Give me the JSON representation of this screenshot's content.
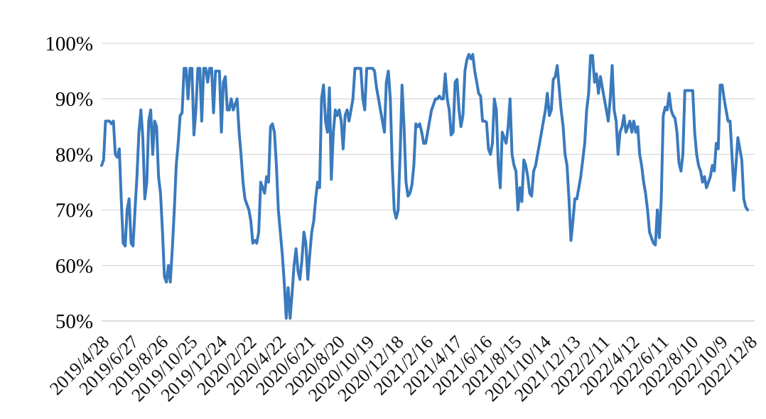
{
  "page": {
    "background": "#ffffff"
  },
  "chart_data": {
    "type": "line",
    "title": "",
    "grid": {
      "show": true,
      "color": "#d9d9d9",
      "axis_line_color": "#c9c9c9"
    },
    "legend_position": "none",
    "y_axis": {
      "tick_labels": [
        "100%",
        "90%",
        "80%",
        "70%",
        "60%",
        "50%"
      ],
      "min": 50,
      "max": 100,
      "unit": "%",
      "label_color": "#000000"
    },
    "x_axis": {
      "tick_labels": [
        "2019/4/28",
        "2019/6/27",
        "2019/8/26",
        "2019/10/25",
        "2019/12/24",
        "2020/2/22",
        "2020/4/22",
        "2020/6/21",
        "2020/8/20",
        "2020/10/19",
        "2020/12/18",
        "2021/2/16",
        "2021/4/17",
        "2021/6/16",
        "2021/8/15",
        "2021/10/14",
        "2021/12/13",
        "2022/2/11",
        "2022/4/12",
        "2022/6/11",
        "2022/8/10",
        "2022/10/9",
        "2022/12/8"
      ],
      "tick_interval_days": 60,
      "total_days": 1320,
      "label_rotation_deg": -45,
      "label_color": "#111111"
    },
    "series": [
      {
        "name": "",
        "color": "#3A7ABD",
        "stroke_width": 4,
        "x_start_day": 0,
        "x_step_days": 4,
        "values": [
          78,
          79,
          86,
          86,
          86,
          85.5,
          86,
          80,
          79.5,
          81,
          72,
          64,
          63.5,
          70,
          72,
          64,
          63.5,
          70,
          76,
          84,
          88,
          83,
          72,
          75,
          86,
          88,
          80,
          86,
          85,
          76,
          73,
          66,
          58,
          57,
          60,
          57,
          63,
          70,
          78,
          82,
          87,
          87.5,
          95.5,
          95.5,
          90,
          95.5,
          95.5,
          83.5,
          88,
          95.5,
          95.5,
          86,
          95.5,
          95.5,
          93,
          95.5,
          95.5,
          87.5,
          95,
          95,
          95,
          84,
          93,
          94,
          88,
          88,
          90,
          88,
          89,
          90,
          84,
          80,
          75,
          72,
          71,
          70,
          68,
          64,
          64.5,
          64,
          66,
          75,
          74,
          73,
          76,
          75,
          85,
          85.5,
          84,
          78,
          70,
          66,
          62,
          57,
          50.5,
          56,
          50.5,
          55,
          60,
          63,
          59,
          57.5,
          61,
          66,
          64,
          57.5,
          62,
          66,
          68,
          72,
          75,
          74,
          90,
          92.5,
          86,
          84,
          92,
          75.5,
          84,
          88,
          87,
          88,
          86,
          81,
          87,
          88,
          86,
          88,
          90,
          95.5,
          95.5,
          95.5,
          95.5,
          90,
          88,
          95.5,
          95.5,
          95.5,
          95.5,
          95,
          92,
          90,
          88,
          86,
          84,
          93,
          95,
          90,
          78,
          70,
          68.5,
          70,
          80,
          92.5,
          85,
          75,
          72.5,
          73,
          74.5,
          78,
          85.5,
          85,
          85.5,
          84,
          82,
          82,
          84,
          86,
          88,
          89,
          90,
          90,
          90.5,
          90,
          90,
          94.5,
          90,
          88,
          83.5,
          84,
          93,
          93.5,
          88,
          85,
          87,
          95,
          97,
          98,
          97.2,
          98,
          95,
          93,
          91,
          90.5,
          86,
          86,
          85.8,
          81,
          80,
          82,
          90,
          88,
          78,
          74,
          84,
          83,
          82,
          85,
          90,
          80,
          78,
          77,
          70,
          74,
          71.5,
          79,
          78,
          76,
          73,
          72.5,
          77,
          78,
          80,
          82,
          84,
          86,
          88,
          91,
          87,
          88,
          93.5,
          94,
          96,
          92,
          88,
          85,
          80,
          78,
          72,
          64.5,
          68,
          72,
          72,
          74,
          76,
          79,
          82,
          88,
          91,
          97.8,
          97.8,
          93,
          94.5,
          91,
          94,
          92,
          90,
          88,
          86,
          90,
          96,
          88,
          86,
          80,
          84,
          85,
          87,
          84,
          85,
          86,
          84,
          86,
          84,
          85,
          80,
          78,
          75,
          73,
          70,
          66,
          65,
          64,
          63.7,
          70,
          65,
          72,
          87,
          88.5,
          88,
          91,
          88,
          87,
          86.5,
          84,
          78.5,
          77,
          80,
          91.5,
          91.5,
          91.5,
          91.5,
          91.5,
          84,
          80,
          78,
          77,
          75,
          76,
          74,
          75,
          76,
          78,
          77,
          82,
          81,
          92.5,
          92.5,
          90,
          88,
          86,
          86,
          80,
          73.5,
          78,
          83,
          81,
          79,
          72,
          70.5,
          70
        ]
      }
    ]
  }
}
